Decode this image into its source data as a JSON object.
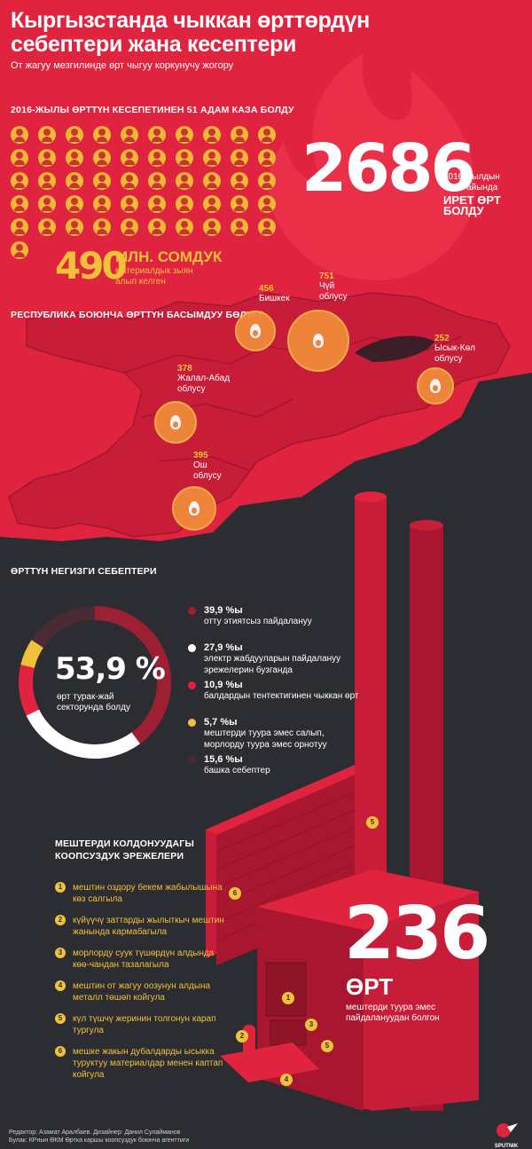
{
  "title": "Кыргызстанда чыккан өрттөрдүн себептери жана кесептери",
  "subtitle": "От жагуу мезгилинде өрт чыгуу коркунучу жогору",
  "deaths": {
    "heading": "2016-ЖЫЛЫ ӨРТТҮН КЕСЕПЕТИНЕН 51 АДАМ КАЗА БОЛДУ",
    "count": 51
  },
  "fires_total": {
    "number": "2686",
    "caption_line1": "2016-жылдын",
    "caption_line2": "тогуз айында",
    "caption_bold": "ИРЕТ ӨРТ БОЛДУ"
  },
  "damage": {
    "number": "490",
    "unit": "МЛН. СОМДУК",
    "line1": "материалдык зыян",
    "line2": "алып келген"
  },
  "regions": {
    "heading": "РЕСПУБЛИКА БОЮНЧА ӨРТТҮН БАСЫМДУУ БӨЛҮГҮ",
    "items": [
      {
        "value": "456",
        "name": "Бишкек"
      },
      {
        "value": "751",
        "name": "Чүй облусу"
      },
      {
        "value": "252",
        "name": "Ысык-Көл облусу"
      },
      {
        "value": "378",
        "name": "Жалал-Абад облусу"
      },
      {
        "value": "395",
        "name": "Ош облусу"
      }
    ]
  },
  "causes": {
    "heading": "ӨРТТҮН НЕГИЗГИ СЕБЕПТЕРИ",
    "center_value": "53,9 %",
    "center_line1": "өрт турак-жай",
    "center_line2": "секторунда болду",
    "items": [
      {
        "pct": "39,9 %ы",
        "desc": "отту этиятсыз пайдалануу",
        "color": "#9c1f32"
      },
      {
        "pct": "27,9 %ы",
        "desc": "электр жабдууларын пайдалануу эрежелерин бузганда",
        "color": "#ffffff"
      },
      {
        "pct": "10,9 %ы",
        "desc": "балдардын тентектигинен чыккан өрт",
        "color": "#e0233f"
      },
      {
        "pct": "5,7 %ы",
        "desc": "мештерди туура эмес салып, морлорду туура эмес орнотуу",
        "color": "#f2c13a"
      },
      {
        "pct": "15,6 %ы",
        "desc": "башка себептер",
        "color": "#4a2a33"
      }
    ]
  },
  "chart_data": {
    "type": "pie",
    "categories": [
      "отту этиятсыз пайдалануу",
      "электр жабдууларын пайдалануу эрежелерин бузганда",
      "балдардын тентектигинен чыккан өрт",
      "мештерди туура эмес салып, морлорду туура эмес орнотуу",
      "башка себептер"
    ],
    "values": [
      39.9,
      27.9,
      10.9,
      5.7,
      15.6
    ],
    "colors": [
      "#9c1f32",
      "#ffffff",
      "#e0233f",
      "#f2c13a",
      "#4a2a33"
    ]
  },
  "stove_rules": {
    "heading_line1": "МЕШТЕРДИ КОЛДОНУУДАГЫ",
    "heading_line2": "КООПСУЗДУК ЭРЕЖЕЛЕРИ",
    "items": [
      {
        "num": "1",
        "text": "мештин оздору бекем жабылышына көз салгыла"
      },
      {
        "num": "2",
        "text": "күйүүчү заттарды жылыткыч мештин жанында кармабагыла"
      },
      {
        "num": "3",
        "text": "морлорду суук түшөрдүн алдында көө-чандан тазалагыла"
      },
      {
        "num": "4",
        "text": "мештин от жагуу оозунун алдына металл төшөп койгула"
      },
      {
        "num": "5",
        "text": "күл түшчү жеринин толгонун карап тургула"
      },
      {
        "num": "6",
        "text": "мешке жакын дубалдарды ысыкка туруктуу материалдар менен каптап койгула"
      }
    ]
  },
  "stove_fires": {
    "number": "236",
    "label": "ӨРТ",
    "line1": "мештерди туура эмес",
    "line2": "пайдалануудан болгон"
  },
  "credits": {
    "line1": "Редактор: Азамат Аралбаев. Дизайнер: Данил Сулайманов",
    "line2": "Булак: КРнын ӨКМ Өртка каршы коопсуздук боюнча агенттиги"
  },
  "logo_text": "SPUTNIK"
}
